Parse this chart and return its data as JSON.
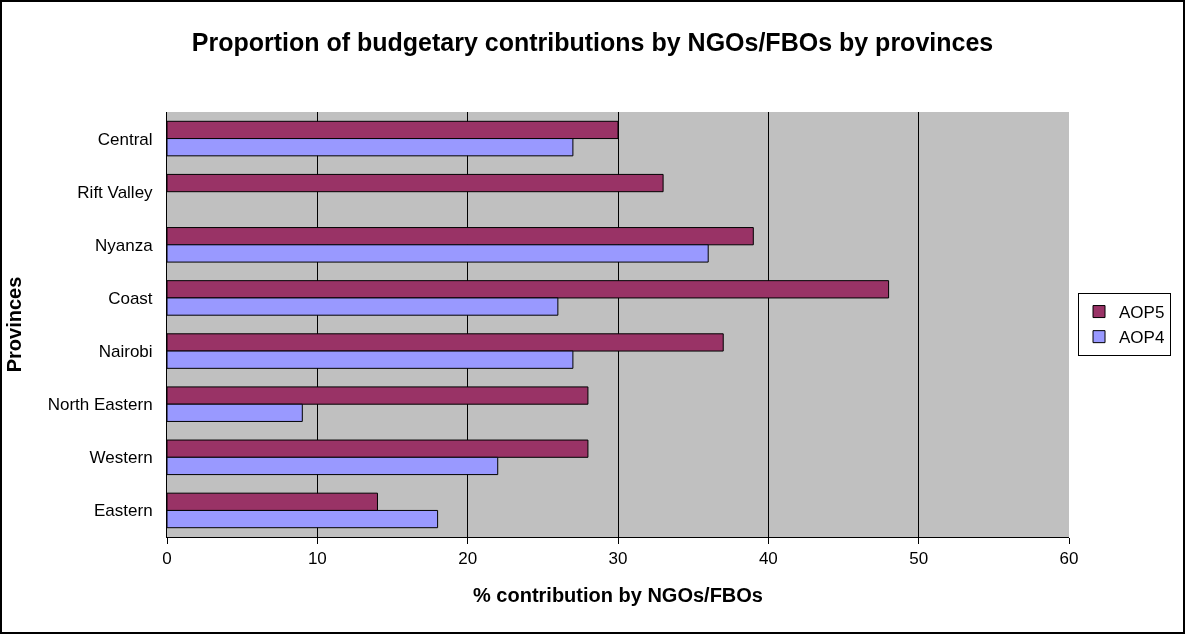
{
  "chart_data": {
    "type": "bar",
    "orientation": "horizontal",
    "title": "Proportion of budgetary contributions by NGOs/FBOs by provinces",
    "xlabel": "% contribution by NGOs/FBOs",
    "ylabel": "Provinces",
    "categories": [
      "Central",
      "Rift Valley",
      "Nyanza",
      "Coast",
      "Nairobi",
      "North Eastern",
      "Western",
      "Eastern"
    ],
    "series": [
      {
        "name": "AOP5",
        "color": "#993366",
        "values": [
          30,
          33,
          39,
          48,
          37,
          28,
          28,
          14
        ]
      },
      {
        "name": "AOP4",
        "color": "#9999ff",
        "values": [
          27,
          null,
          36,
          26,
          27,
          9,
          22,
          18
        ]
      }
    ],
    "xlim": [
      0,
      60
    ],
    "xticks": [
      0,
      10,
      20,
      30,
      40,
      50,
      60
    ],
    "grid": "x",
    "legend": "right"
  }
}
